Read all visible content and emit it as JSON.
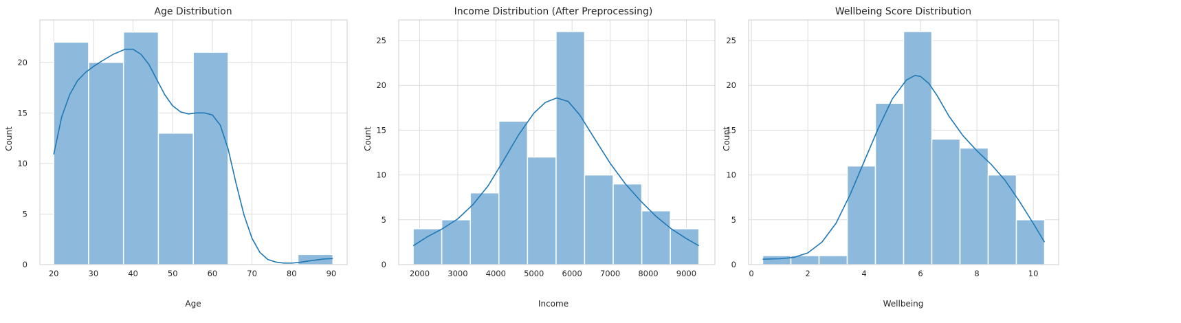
{
  "chart_data": [
    {
      "type": "bar",
      "title": "Age Distribution",
      "xlabel": "Age",
      "ylabel": "Count",
      "xlim": [
        16.5,
        94
      ],
      "ylim": [
        0,
        24.2
      ],
      "xticks": [
        20,
        30,
        40,
        50,
        60,
        70,
        80,
        90
      ],
      "yticks": [
        0,
        5,
        10,
        15,
        20
      ],
      "bin_edges": [
        20,
        28.8,
        37.6,
        46.4,
        55.2,
        64,
        72.8,
        81.6,
        90.4
      ],
      "values": [
        22,
        20,
        23,
        13,
        21,
        0,
        0,
        1
      ],
      "kde": {
        "x": [
          20,
          22,
          24,
          26,
          28,
          30,
          32,
          35,
          38,
          40,
          42,
          44,
          46,
          48,
          50,
          52,
          54,
          56,
          58,
          60,
          62,
          64,
          66,
          68,
          70,
          72,
          74,
          76,
          78,
          80,
          82,
          84,
          86,
          88,
          90.4
        ],
        "y": [
          10.9,
          14.6,
          16.8,
          18.2,
          19.0,
          19.6,
          20.1,
          20.8,
          21.3,
          21.3,
          20.8,
          19.8,
          18.3,
          16.8,
          15.7,
          15.1,
          14.9,
          15.0,
          15.0,
          14.8,
          13.8,
          11.4,
          8.0,
          4.9,
          2.6,
          1.2,
          0.5,
          0.25,
          0.15,
          0.15,
          0.22,
          0.35,
          0.45,
          0.55,
          0.6
        ]
      },
      "grid": true,
      "legend": "none",
      "bar_color": "#8dbadc",
      "line_color": "#1f77b4"
    },
    {
      "type": "bar",
      "title": "Income Distribution (After Preprocessing)",
      "xlabel": "Income",
      "ylabel": "Count",
      "xlim": [
        1450,
        9750
      ],
      "ylim": [
        0,
        27.3
      ],
      "xticks": [
        2000,
        3000,
        4000,
        5000,
        6000,
        7000,
        8000,
        9000
      ],
      "yticks": [
        0,
        5,
        10,
        15,
        20,
        25
      ],
      "bin_edges": [
        1830,
        2580,
        3330,
        4080,
        4830,
        5580,
        6330,
        7080,
        7830,
        8580,
        9330
      ],
      "values": [
        4,
        5,
        8,
        16,
        12,
        26,
        10,
        9,
        6,
        4
      ],
      "kde": {
        "x": [
          1830,
          2200,
          2600,
          3000,
          3400,
          3800,
          4200,
          4600,
          5000,
          5300,
          5600,
          5900,
          6200,
          6600,
          7000,
          7400,
          7800,
          8200,
          8600,
          9000,
          9330
        ],
        "y": [
          2.1,
          3.1,
          4.0,
          5.1,
          6.7,
          8.8,
          11.6,
          14.5,
          16.9,
          18.1,
          18.6,
          18.2,
          16.7,
          14.0,
          11.3,
          9.0,
          7.1,
          5.4,
          4.0,
          2.9,
          2.1
        ]
      },
      "grid": true,
      "legend": "none",
      "bar_color": "#8dbadc",
      "line_color": "#1f77b4"
    },
    {
      "type": "bar",
      "title": "Wellbeing Score Distribution",
      "xlabel": "Wellbeing",
      "ylabel": "Count",
      "xlim": [
        -0.1,
        10.9
      ],
      "ylim": [
        0,
        27.3
      ],
      "xticks": [
        0,
        2,
        4,
        6,
        8,
        10
      ],
      "yticks": [
        0,
        5,
        10,
        15,
        20,
        25
      ],
      "bin_edges": [
        0.4,
        1.4,
        2.4,
        3.4,
        4.4,
        5.4,
        6.4,
        7.4,
        8.4,
        9.4,
        10.4
      ],
      "values": [
        1,
        1,
        1,
        11,
        18,
        26,
        14,
        13,
        10,
        5
      ],
      "kde": {
        "x": [
          0.4,
          1.0,
          1.5,
          2.0,
          2.5,
          3.0,
          3.5,
          4.0,
          4.5,
          5.0,
          5.5,
          5.8,
          6.0,
          6.3,
          6.6,
          7.0,
          7.5,
          8.0,
          8.5,
          9.0,
          9.5,
          10.0,
          10.4
        ],
        "y": [
          0.6,
          0.65,
          0.8,
          1.3,
          2.5,
          4.6,
          7.8,
          11.5,
          15.2,
          18.5,
          20.6,
          21.1,
          21.0,
          20.2,
          18.8,
          16.6,
          14.4,
          12.7,
          11.2,
          9.4,
          7.1,
          4.6,
          2.5
        ]
      },
      "grid": true,
      "legend": "none",
      "bar_color": "#8dbadc",
      "line_color": "#1f77b4"
    }
  ]
}
